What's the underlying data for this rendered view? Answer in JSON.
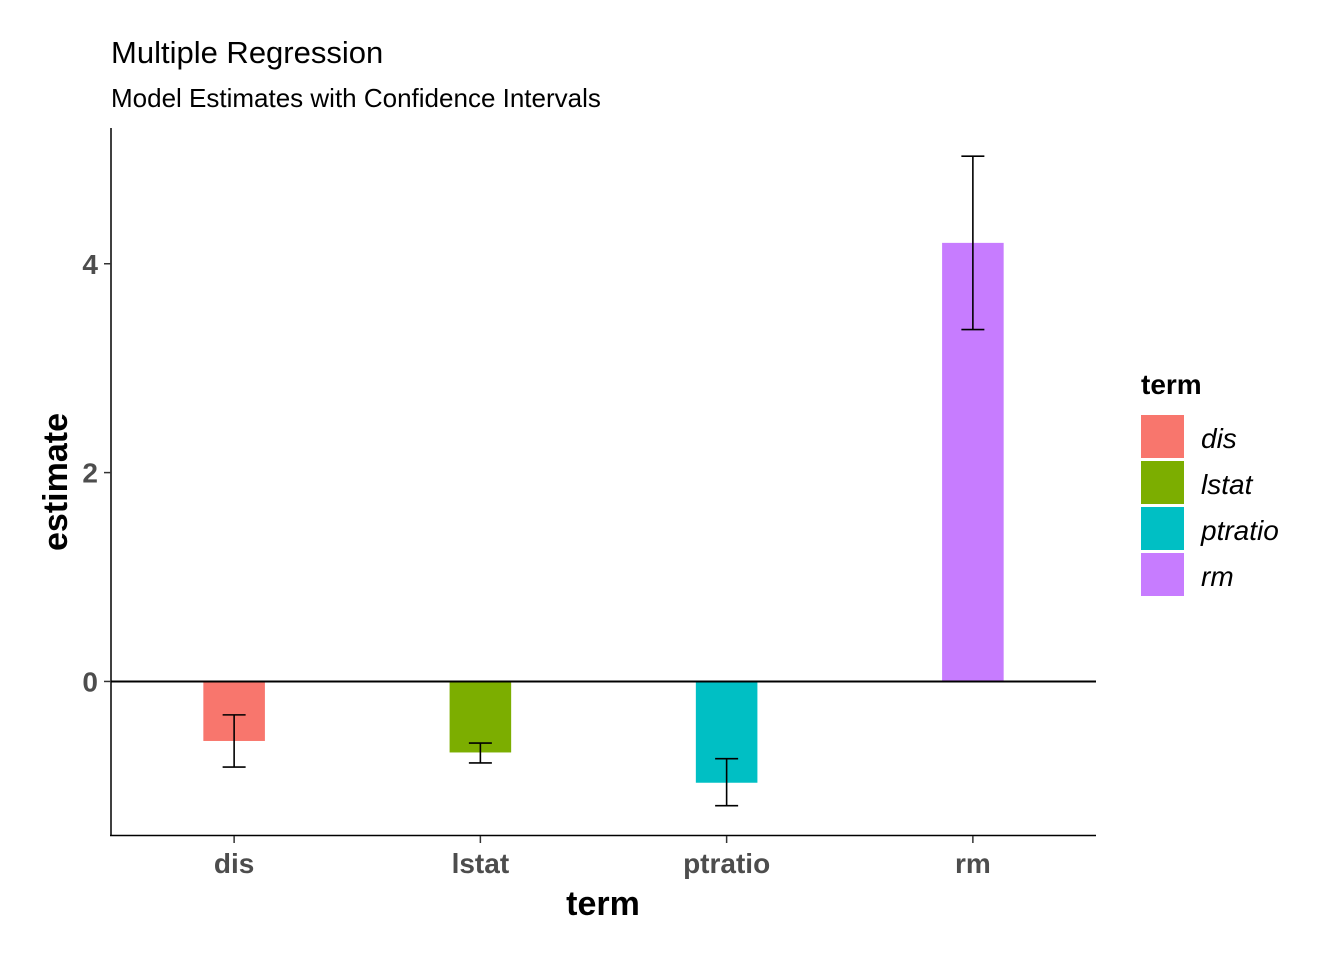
{
  "chart_data": {
    "type": "bar",
    "title": "Multiple Regression",
    "subtitle": "Model Estimates with Confidence Intervals",
    "xlabel": "term",
    "ylabel": "estimate",
    "categories": [
      "dis",
      "lstat",
      "ptratio",
      "rm"
    ],
    "values": [
      -0.57,
      -0.68,
      -0.97,
      4.2
    ],
    "ci_lower": [
      -0.82,
      -0.78,
      -1.19,
      3.37
    ],
    "ci_upper": [
      -0.32,
      -0.59,
      -0.74,
      5.03
    ],
    "colors": [
      "#F8766D",
      "#7CAE00",
      "#00BFC4",
      "#C77CFF"
    ],
    "ylim": [
      -1.48,
      5.3
    ],
    "yticks": [
      0,
      2,
      4
    ],
    "ytick_labels": [
      "0",
      "2",
      "4"
    ],
    "hline": 0,
    "grid": false,
    "legend": {
      "title": "term",
      "position": "right",
      "items": [
        "dis",
        "lstat",
        "ptratio",
        "rm"
      ]
    }
  }
}
